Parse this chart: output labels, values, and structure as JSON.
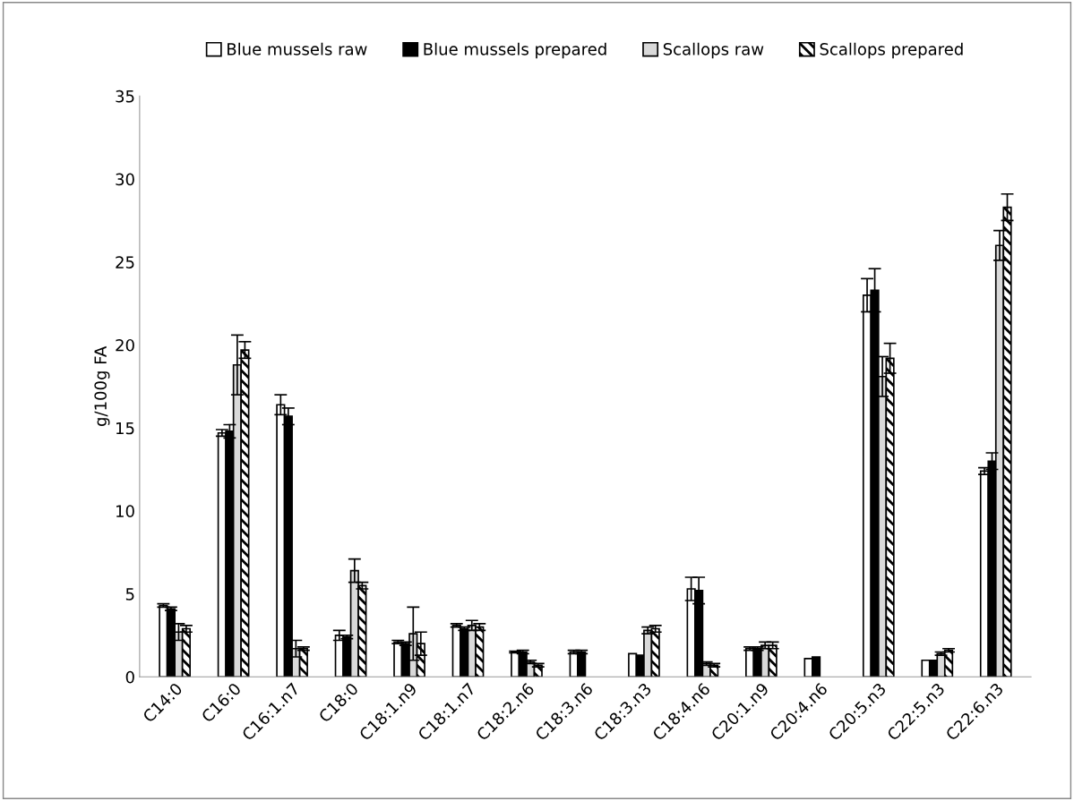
{
  "chart_data": {
    "type": "bar",
    "ylabel": "g/100g FA",
    "categories": [
      "C14:0",
      "C16:0",
      "C16:1.n7",
      "C18:0",
      "C18:1.n9",
      "C18:1.n7",
      "C18:2.n6",
      "C18:3.n6",
      "C18:3.n3",
      "C18:4.n6",
      "C20:1.n9",
      "C20:4.n6",
      "C20:5.n3",
      "C22:5.n3",
      "C22:6.n3"
    ],
    "series": [
      {
        "name": "Blue mussels raw",
        "color": "#ffffff",
        "values": [
          4.3,
          14.7,
          16.4,
          2.5,
          2.1,
          3.1,
          1.5,
          1.5,
          1.4,
          5.3,
          1.7,
          1.1,
          23.0,
          1.0,
          12.4
        ],
        "errors": [
          0.1,
          0.2,
          0.6,
          0.3,
          0.1,
          0.1,
          0.05,
          0.1,
          null,
          0.7,
          0.1,
          null,
          1.0,
          null,
          0.2
        ]
      },
      {
        "name": "Blue mussels prepared",
        "color": "#000000",
        "values": [
          4.1,
          14.8,
          15.7,
          2.4,
          2.0,
          2.9,
          1.5,
          1.5,
          1.3,
          5.2,
          1.7,
          1.2,
          23.3,
          1.0,
          13.0
        ],
        "errors": [
          0.1,
          0.4,
          0.5,
          0.1,
          0.1,
          0.1,
          0.1,
          0.1,
          null,
          0.8,
          0.1,
          null,
          1.3,
          null,
          0.5
        ]
      },
      {
        "name": "Scallops raw",
        "color": "#d9d9d9",
        "values": [
          2.7,
          18.8,
          1.7,
          6.4,
          2.6,
          3.1,
          0.9,
          null,
          2.8,
          0.8,
          1.9,
          null,
          18.1,
          1.4,
          26.0
        ],
        "errors": [
          0.5,
          1.8,
          0.5,
          0.7,
          1.6,
          0.3,
          0.1,
          null,
          0.2,
          0.1,
          0.2,
          null,
          1.2,
          0.1,
          0.9
        ]
      },
      {
        "name": "Scallops prepared",
        "color": "#000000",
        "values": [
          2.9,
          19.7,
          1.7,
          5.5,
          2.0,
          3.0,
          0.7,
          null,
          2.9,
          0.7,
          1.9,
          null,
          19.2,
          1.6,
          28.3
        ],
        "errors": [
          0.2,
          0.5,
          0.1,
          0.2,
          0.7,
          0.2,
          0.1,
          null,
          0.2,
          0.1,
          0.2,
          null,
          0.9,
          0.1,
          0.8
        ]
      }
    ],
    "ylim": [
      0,
      35
    ],
    "yticks": [
      0,
      5,
      10,
      15,
      20,
      25,
      30,
      35
    ],
    "grid": false,
    "legend": "top"
  }
}
